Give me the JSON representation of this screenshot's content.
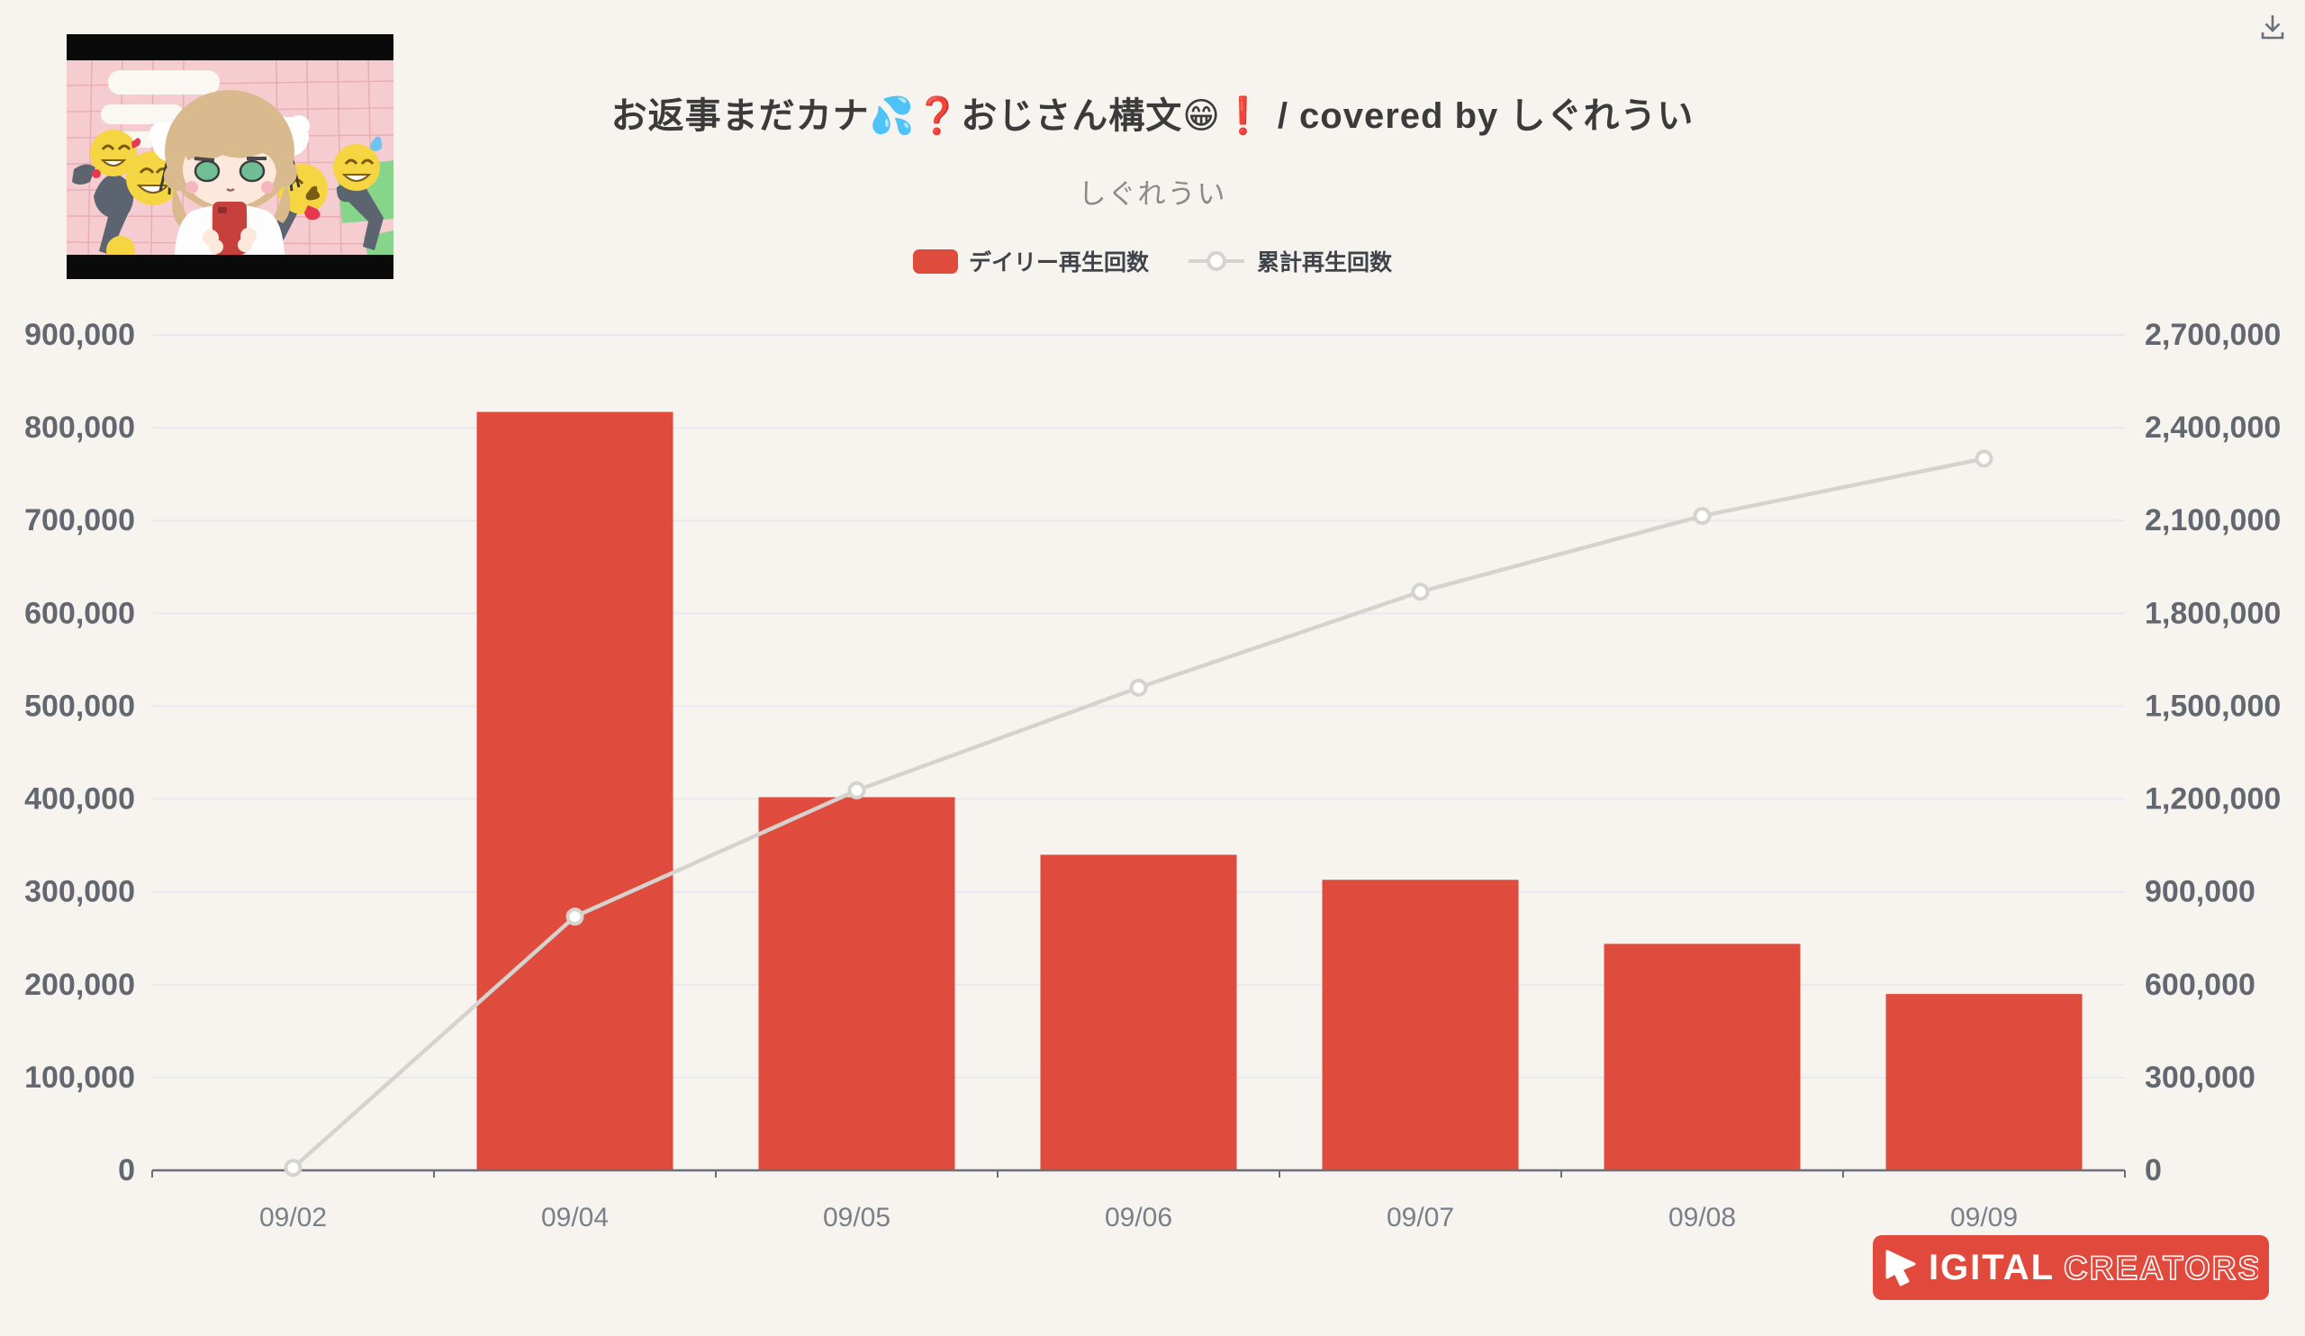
{
  "page": {
    "background": "#F7F4F0"
  },
  "header": {
    "title": "お返事まだカナ💦❓おじさん構文😁❗ / covered by しぐれうい",
    "subtitle": "しぐれうい"
  },
  "toolbar": {
    "download_icon": "download-icon"
  },
  "legend": [
    {
      "label": "デイリー再生回数",
      "type": "bar",
      "color": "#DF4B3C"
    },
    {
      "label": "累計再生回数",
      "type": "line",
      "color": "#D6D3CF"
    }
  ],
  "chart_data": {
    "type": "bar",
    "categories": [
      "09/02",
      "09/04",
      "09/05",
      "09/06",
      "09/07",
      "09/08",
      "09/09"
    ],
    "series": [
      {
        "name": "デイリー再生回数",
        "type": "bar",
        "axis": "left",
        "color": "#DF4B3C",
        "values": [
          0,
          817000,
          402000,
          340000,
          313000,
          244000,
          190000
        ]
      },
      {
        "name": "累計再生回数",
        "type": "line",
        "axis": "right",
        "color": "#D6D3CF",
        "values": [
          8000,
          820000,
          1228000,
          1560000,
          1870000,
          2115000,
          2300000
        ]
      }
    ],
    "title": "お返事まだカナ💦❓おじさん構文😁❗ / covered by しぐれうい",
    "subtitle": "しぐれうい",
    "left_axis": {
      "min": 0,
      "max": 900000,
      "step": 100000,
      "labels": [
        "0",
        "100,000",
        "200,000",
        "300,000",
        "400,000",
        "500,000",
        "600,000",
        "700,000",
        "800,000",
        "900,000"
      ]
    },
    "right_axis": {
      "min": 0,
      "max": 2700000,
      "step": 300000,
      "labels": [
        "0",
        "300,000",
        "600,000",
        "900,000",
        "1,200,000",
        "1,500,000",
        "1,800,000",
        "2,100,000",
        "2,400,000",
        "2,700,000"
      ]
    },
    "grid": true,
    "legend_position": "top",
    "colors": {
      "bar": "#DF4B3C",
      "line": "#D6D3CF",
      "marker_fill": "#FFFFFF",
      "gridline": "#E8E8F1",
      "axis_line": "#6B6F77",
      "y_label": "#63676F",
      "x_label": "#7A8089"
    }
  },
  "footer": {
    "logo_text_solid": "IGITAL",
    "logo_text_outline": "CREATORS",
    "logo_bg": "#E0493C"
  }
}
